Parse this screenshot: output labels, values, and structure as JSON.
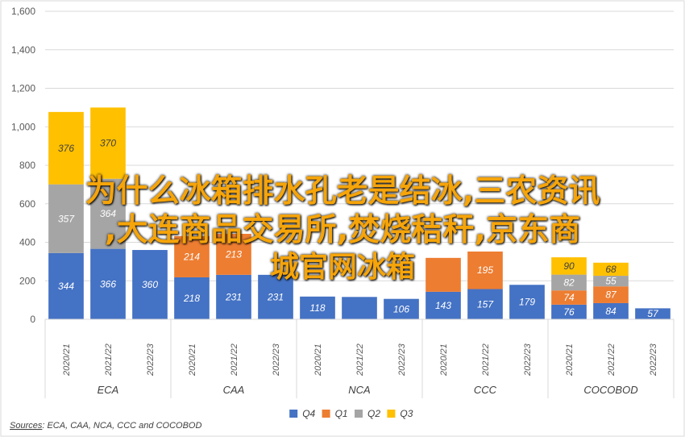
{
  "chart_data": {
    "type": "bar",
    "stacked": true,
    "ylim": [
      0,
      1600
    ],
    "yticks": [
      0,
      200,
      400,
      600,
      800,
      1000,
      1200,
      1400,
      1600
    ],
    "ytick_labels": [
      "0",
      "200",
      "400",
      "600",
      "800",
      "1,000",
      "1,200",
      "1,400",
      "1,600"
    ],
    "groups": [
      {
        "name": "ECA",
        "categories": [
          "2020/21",
          "2021/22",
          "2022/23"
        ]
      },
      {
        "name": "CAA",
        "categories": [
          "2020/21",
          "2021/22",
          "2022/23"
        ]
      },
      {
        "name": "NCA",
        "categories": [
          "2020/21",
          "2021/22",
          "2022/23"
        ]
      },
      {
        "name": "CCC",
        "categories": [
          "2020/21",
          "2021/22",
          "2022/23"
        ]
      },
      {
        "name": "COCOBOD",
        "categories": [
          "2020/21",
          "2021/22",
          "2022/23"
        ]
      }
    ],
    "series": [
      {
        "name": "Q4",
        "color": "#4472c4",
        "label_color": "#ffffff",
        "values": [
          344,
          366,
          360,
          218,
          231,
          231,
          118,
          116,
          106,
          143,
          157,
          179,
          76,
          84,
          57
        ],
        "labels": [
          "344",
          "366",
          "360",
          "218",
          "231",
          "231",
          "118",
          "",
          "106",
          "143",
          "157",
          "179",
          "76",
          "84",
          "57"
        ]
      },
      {
        "name": "Q1",
        "color": "#ed7d31",
        "label_color": "#ffffff",
        "values": [
          0,
          0,
          0,
          214,
          213,
          0,
          0,
          0,
          0,
          176,
          195,
          0,
          74,
          87,
          0
        ],
        "labels": [
          "",
          "",
          "",
          "214",
          "213",
          "",
          "",
          "",
          "",
          "",
          "195",
          "",
          "74",
          "87",
          ""
        ]
      },
      {
        "name": "Q2",
        "color": "#a5a5a5",
        "label_color": "#ffffff",
        "values": [
          357,
          364,
          0,
          0,
          0,
          0,
          0,
          0,
          0,
          0,
          0,
          0,
          82,
          55,
          0
        ],
        "labels": [
          "357",
          "364",
          "",
          "",
          "",
          "",
          "",
          "",
          "",
          "",
          "",
          "",
          "82",
          "55",
          ""
        ]
      },
      {
        "name": "Q3",
        "color": "#ffc000",
        "label_color": "#404040",
        "values": [
          376,
          370,
          0,
          0,
          0,
          0,
          0,
          0,
          0,
          0,
          0,
          0,
          90,
          68,
          0
        ],
        "labels": [
          "376",
          "370",
          "",
          "",
          "",
          "",
          "",
          "",
          "",
          "",
          "",
          "",
          "90",
          "68",
          ""
        ]
      }
    ],
    "legend": [
      "Q4",
      "Q1",
      "Q2",
      "Q3"
    ],
    "legend_position": "bottom",
    "grid": true,
    "source_label": "Sources",
    "source_text": ": ECA, CAA, NCA, CCC and COCOBOD"
  },
  "overlay_text": {
    "line1": "为什么冰箱排水孔老是结冰,三农资讯",
    "line2": ",大连商品交易所,焚烧秸秆,京东商",
    "line3": "城官网冰箱"
  }
}
